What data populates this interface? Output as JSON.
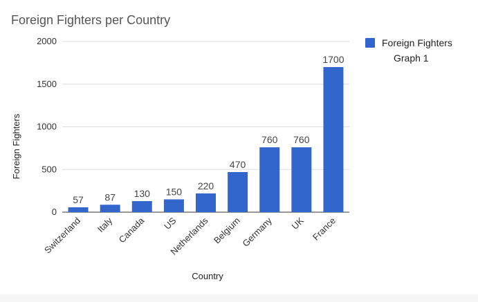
{
  "colors": {
    "bar": "#3366CC",
    "grid": "#DDDDDD",
    "axis": "#333333",
    "title": "#555555"
  },
  "chart_data": {
    "type": "bar",
    "title": "Foreign Fighters per Country",
    "xlabel": "Country",
    "ylabel": "Foreign Fighters",
    "categories": [
      "Switzerland",
      "Italy",
      "Canada",
      "US",
      "Netherlands",
      "Belgium",
      "Germany",
      "UK",
      "France"
    ],
    "series": [
      {
        "name": "Foreign Fighters Graph 1",
        "values": [
          57,
          87,
          130,
          150,
          220,
          470,
          760,
          760,
          1700
        ]
      }
    ],
    "data_labels": [
      "57",
      "87",
      "130",
      "150",
      "220",
      "470",
      "760",
      "760",
      "1700"
    ],
    "ylim": [
      0,
      2000
    ],
    "yticks": [
      0,
      500,
      1000,
      1500,
      2000
    ],
    "grid": true,
    "legend_position": "top-right"
  }
}
